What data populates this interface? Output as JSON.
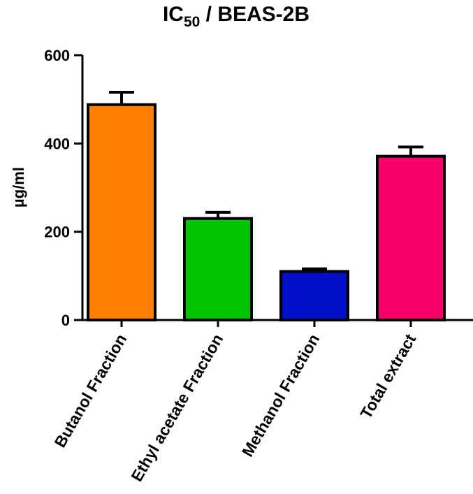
{
  "chart_data": {
    "type": "bar",
    "title": {
      "prefix": "IC",
      "subscript": "50",
      "suffix": " / BEAS-2B"
    },
    "xlabel": "",
    "ylabel": "µg/ml",
    "ylim": [
      0,
      600
    ],
    "yticks": [
      0,
      200,
      400,
      600
    ],
    "grid": false,
    "categories": [
      "Butanol Fraction",
      "Ethyl acetate Fraction",
      "Methanol Fraction",
      "Total extract"
    ],
    "values": [
      488,
      230,
      110,
      371
    ],
    "errors": [
      28,
      14,
      6,
      21
    ],
    "colors": [
      "#ff7f00",
      "#00c400",
      "#0010c8",
      "#f5006a"
    ],
    "edge_color": "#000000"
  }
}
